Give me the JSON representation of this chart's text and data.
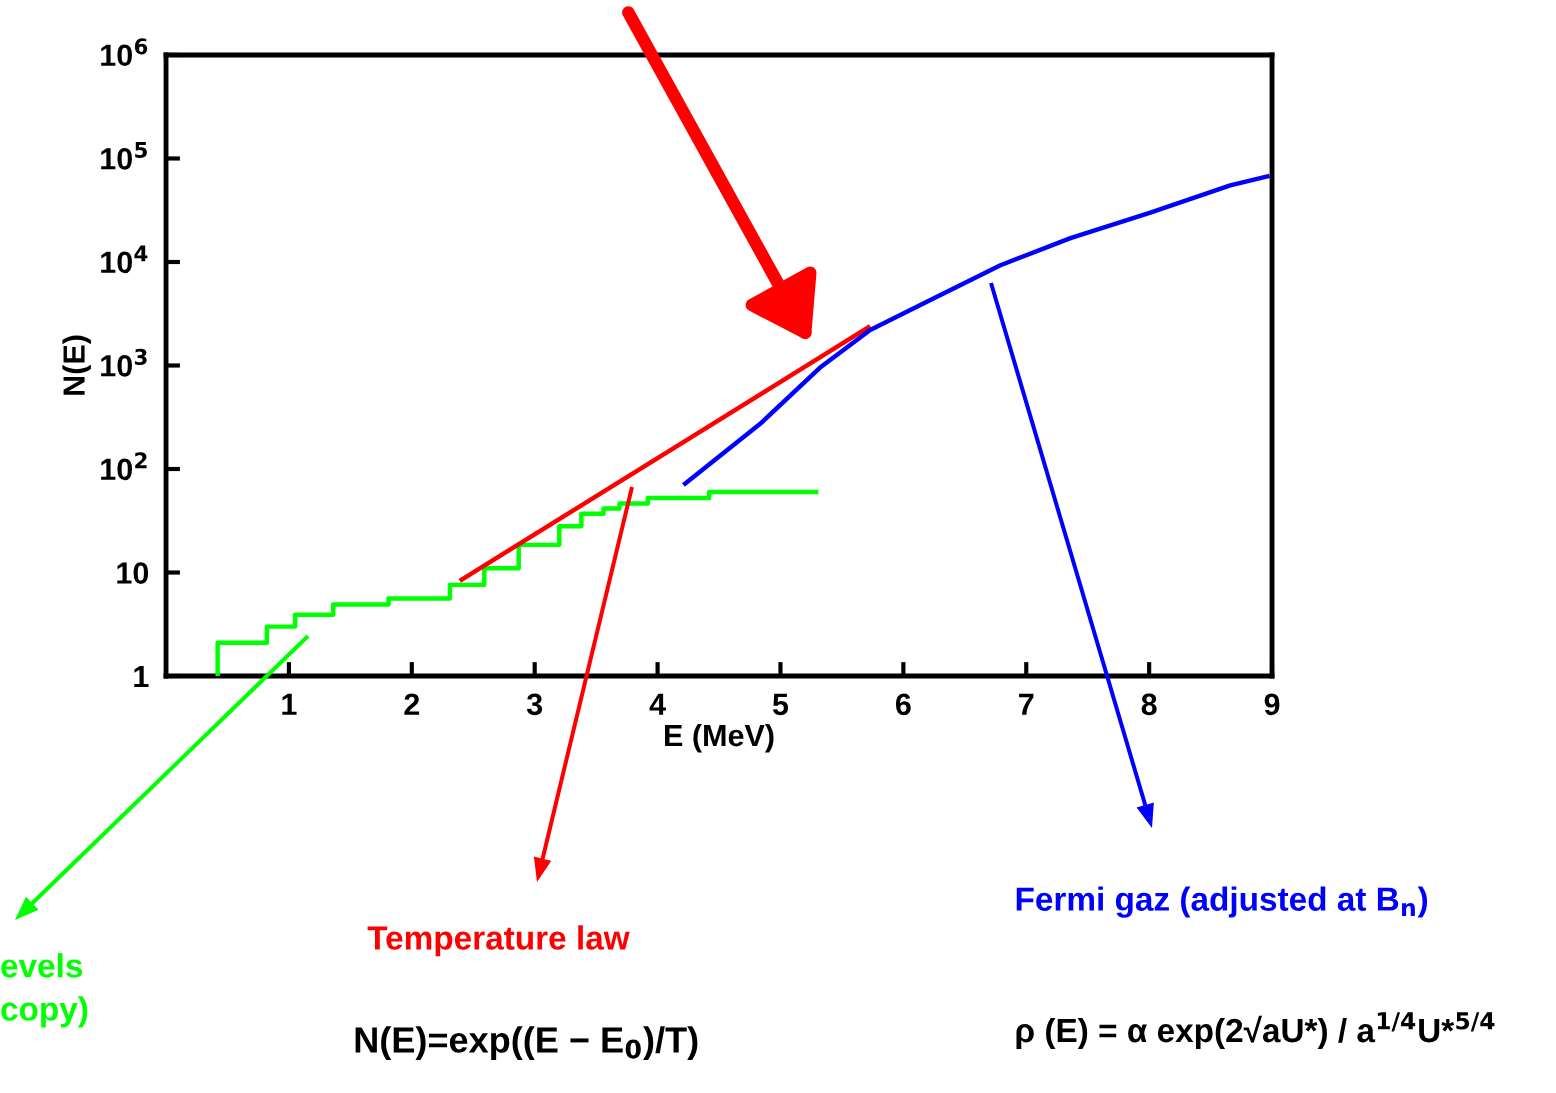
{
  "chart_data": {
    "type": "line",
    "xlabel": "E (MeV)",
    "ylabel": "N(E)",
    "log": "y",
    "grid": false,
    "xlim": [
      0,
      9
    ],
    "xticks": [
      1,
      2,
      3,
      4,
      5,
      6,
      7,
      8,
      9
    ],
    "ylim": [
      1,
      1000000
    ],
    "yticks": [
      1,
      10,
      {
        "value": 100,
        "label": "10$^{2}$"
      },
      {
        "value": 1000,
        "label": "10$^{3}$"
      },
      {
        "value": 10000,
        "label": "10$^{4}$"
      },
      {
        "value": 100000,
        "label": "10$^{5}$"
      },
      {
        "value": 1000000,
        "label": "10$^{6}$"
      }
    ],
    "series": [
      {
        "type": "step",
        "color": "#00ff00",
        "x": [
          0.42,
          0.42,
          0.82,
          1.05,
          1.36,
          1.81,
          2.31,
          2.59,
          2.87,
          3.2,
          3.38,
          3.56,
          3.69,
          3.92,
          4.42,
          5.29
        ],
        "values": [
          1,
          2.1,
          3.0,
          3.9,
          4.9,
          5.6,
          7.6,
          11,
          18.5,
          28,
          37,
          41.5,
          46.5,
          52.5,
          60,
          60
        ]
      },
      {
        "color": "#ff0000",
        "x": [
          2.39,
          5.73
        ],
        "values": [
          8.3,
          2400
        ]
      },
      {
        "color": "#0000ff",
        "x": [
          4.21,
          4.83,
          5.32,
          5.73,
          6.22,
          6.79,
          7.36,
          8.01,
          8.66,
          8.98
        ],
        "values": [
          70,
          270,
          950,
          2200,
          4300,
          9300,
          17000,
          30000,
          55000,
          68000
        ]
      }
    ],
    "annotations": [
      "evels\ncopy)",
      "Temperature law",
      "N(E)=exp((E − E$_{0}$)/T)",
      "Fermi gaz (adjusted at B$_{n}$)",
      "ρ (E) = α exp(2√aU*) / a$^{1/4}$U*$^{5/4}$"
    ]
  }
}
